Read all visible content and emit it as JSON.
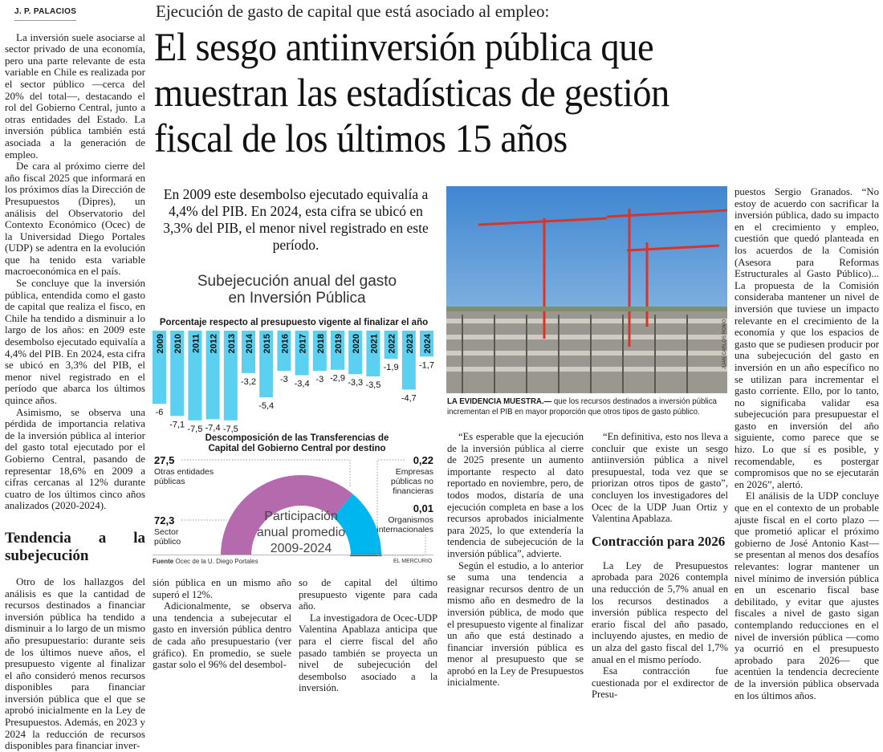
{
  "byline": "J. P. PALACIOS",
  "kicker": "Ejecución de gasto de capital que está asociado al empleo:",
  "headline": [
    "El sesgo antiinversión pública que",
    "muestran las estadísticas de gestión",
    "fiscal de los últimos 15 años"
  ],
  "deck": "En 2009 este desembolso ejecutado equivalía a 4,4% del PIB. En 2024, esta cifra se ubicó en 3,3% del PIB, el menor nivel registrado en este período.",
  "col1": [
    "La inversión suele asociarse al sector privado de una economía, pero una parte relevante de esta variable en Chile es realizada por el sector público —cerca del 20% del total—, destacando el rol del Gobierno Central, junto a otras entidades del Estado. La inversión pública también está asociada a la generación de empleo.",
    "De cara al próximo cierre del año fiscal 2025 que informará en los próximos días la Dirección de Presupuestos (Dipres), un análisis del Observatorio del Contexto Económico (Ocec) de la Universidad Diego Portales (UDP) se adentra en la evolución que ha tenido esta variable macroeconómica en el país.",
    "Se concluye que la inversión pública, entendida como el gasto de capital que realiza el fisco, en Chile ha tendido a disminuir a lo largo de los años: en 2009 este desembolso ejecutado equivalía a 4,4% del PIB. En 2024, esta cifra se ubicó en 3,3% del PIB, el menor nivel registrado en el período que abarca los últimos quince años.",
    "Asimismo, se observa una pérdida de importancia relativa de la inversión pública al interior del gasto total ejecutado por el Gobierno Central, pasando de representar 18,6% en 2009 a cifras cercanas al 12% durante cuatro de los últimos cinco años analizados (2020-2024)."
  ],
  "subhead1": "Tendencia a la subejecución",
  "col1b": "Otro de los hallazgos del análisis es que la cantidad de recursos destinados a financiar inversión pública ha tendido a disminuir a lo largo de un mismo año presupuestario: durante seis de los últimos nueve años, el presupuesto vigente al finalizar el año consideró menos recursos disponibles para financiar inversión pública que el que se aprobó inicialmente en la Ley de Presupuestos. Además, en 2023 y 2024 la reducción de recursos disponibles para financiar inver-",
  "col2": [
    "sión pública en un mismo año superó el 12%.",
    "Adicionalmente, se observa una tendencia a subejecutar el gasto en inversión pública dentro de cada año presupuestario (ver gráfico). En promedio, se suele gastar solo el 96% del desembol-"
  ],
  "col3": [
    "so de capital del último presupuesto vigente para cada año.",
    "La investigadora de Ocec-UDP Valentina Apablaza anticipa que para el cierre fiscal del año pasado también se proyecta un nivel de subejecución del desembolso asociado a la inversión."
  ],
  "photo": {
    "credit": "JUAN CARLOS ROMO",
    "caption_lead": "LA EVIDENCIA MUESTRA.—",
    "caption": " que los recursos destinados a inversión pública incrementan el PIB en mayor proporción que otros tipos de gasto público."
  },
  "col4": [
    "“Es esperable que la ejecución de la inversión pública al cierre de 2025 presente un aumento importante respecto al dato reportado en noviembre, pero, de todos modos, distaría de una ejecución completa en base a los recursos aprobados inicialmente para 2025, lo que extendería la tendencia de subejecución de la inversión pública”, advierte.",
    "Según el estudio, a lo anterior se suma una tendencia a reasignar recursos dentro de un mismo año en desmedro de la inversión pública, de modo que el presupuesto vigente al finalizar un año que está destinado a financiar inversión pública es menor al presupuesto que se aprobó en la Ley de Presupuestos inicialmente."
  ],
  "col5": [
    "“En definitiva, esto nos lleva a concluir que existe un sesgo antiinversión pública a nivel presupuestal, toda vez que se priorizan otros tipos de gasto”, concluyen los investigadores del Ocec de la UDP Juan Ortiz y Valentina Apablaza."
  ],
  "subhead2": "Contracción para 2026",
  "col5b": [
    "La Ley de Presupuestos aprobada para 2026 contempla una reducción de 5,7% anual en los recursos destinados a inversión pública respecto del erario fiscal del año pasado, incluyendo ajustes, en medio de un alza del gasto fiscal del 1,7% anual en el mismo período.",
    "Esa contracción fue cuestionada por el exdirector de Presu-"
  ],
  "col6": [
    "puestos Sergio Granados. “No estoy de acuerdo con sacrificar la inversión pública, dado su impacto en el crecimiento y empleo, cuestión que quedó planteada en los acuerdos de la Comisión (Asesora para Reformas Estructurales al Gasto Público)... La propuesta de la Comisión consideraba mantener un nivel de inversión que tuviese un impacto relevante en el crecimiento de la economía y que los espacios de gasto que se pudiesen producir por una subejecución del gasto en inversión en un año específico no se utilizan para incrementar el gasto corriente. Ello, por lo tanto, no significaba validar esa subejecución para presupuestar el gasto en inversión del año siguiente, como parece que se hizo. Lo que sí es posible, y recomendable, es postergar compromisos que no se ejecutarán en 2026”, alertó.",
    "El análisis de la UDP concluye que en el contexto de un probable ajuste fiscal en el corto plazo —que prometió aplicar el próximo gobierno de José Antonio Kast— se presentan al menos dos desafíos relevantes: lograr mantener un nivel mínimo de inversión pública en un escenario fiscal base debilitado, y evitar que ajustes fiscales a nivel de gasto sigan contemplando reducciones en el nivel de inversión pública —como ya ocurrió en el presupuesto aprobado para 2026— que acentúen la tendencia decreciente de la inversión pública observada en los últimos años."
  ],
  "colors": {
    "bar": "#5bd0f0",
    "purple": "#b56aae",
    "blue": "#00b6ee"
  },
  "chart_data": [
    {
      "type": "bar",
      "title": "Subejecución anual del gasto en Inversión Pública",
      "subtitle": "Porcentaje respecto al presupuesto vigente al finalizar el año",
      "categories": [
        "2009",
        "2010",
        "2011",
        "2012",
        "2013",
        "2014",
        "2015",
        "2016",
        "2017",
        "2018",
        "2019",
        "2020",
        "2021",
        "2022",
        "2023",
        "2024"
      ],
      "values": [
        -6,
        -7.1,
        -7.5,
        -7.4,
        -7.5,
        -3.2,
        -5.4,
        -3,
        -3.4,
        -3,
        -2.9,
        -3.3,
        -3.5,
        -1.9,
        -4.7,
        -1.7
      ],
      "labels": [
        "-6",
        "-7,1",
        "-7,5",
        "-7,4",
        "-7,5",
        "-3,2",
        "-5,4",
        "-3",
        "-3,4",
        "-3",
        "-2,9",
        "-3,3",
        "-3,5",
        "-1,9",
        "-4,7",
        "-1,7"
      ]
    },
    {
      "type": "pie",
      "title": "Descomposición de las Transferencias de Capital del Gobierno Central por destino",
      "center_label": [
        "Participación",
        "anual promedio",
        "2009-2024"
      ],
      "slices": [
        {
          "name": [
            "Sector",
            "público"
          ],
          "value": 72.3,
          "label": "72,3"
        },
        {
          "name": [
            "Otras entidades",
            "públicas"
          ],
          "value": 27.5,
          "label": "27,5"
        },
        {
          "name": [
            "Empresas",
            "públicas no",
            "financieras"
          ],
          "value": 0.22,
          "label": "0,22"
        },
        {
          "name": [
            "Organismos",
            "internacionales"
          ],
          "value": 0.01,
          "label": "0,01"
        }
      ]
    }
  ],
  "source_label": "Fuente",
  "source": "Ocec de la U. Diego Portales",
  "publisher": "EL MERCURIO"
}
